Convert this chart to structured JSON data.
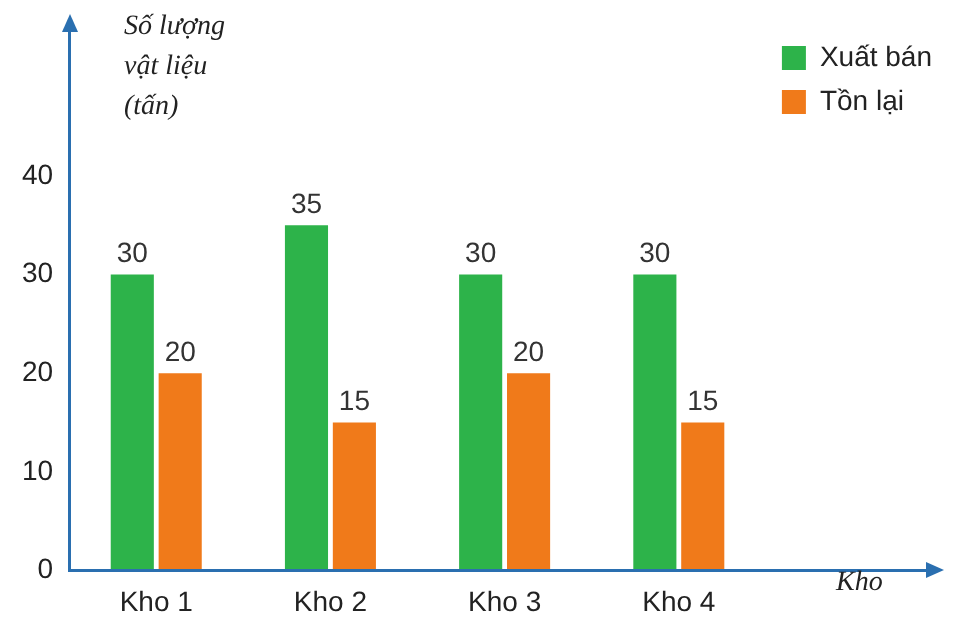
{
  "chart_data": {
    "type": "bar",
    "ylabel": "Số lượng vật liệu (tấn)",
    "xlabel": "Kho",
    "categories": [
      "Kho 1",
      "Kho 2",
      "Kho 3",
      "Kho 4"
    ],
    "series": [
      {
        "name": "Xuất bán",
        "color": "#2db34a",
        "values": [
          30,
          35,
          30,
          30
        ]
      },
      {
        "name": "Tồn lại",
        "color": "#f07a1a",
        "values": [
          20,
          15,
          20,
          15
        ]
      }
    ],
    "ylim": [
      0,
      55
    ],
    "yticks": [
      0,
      10,
      20,
      30,
      40
    ],
    "grid": false,
    "legend": "top right",
    "data_labels": true
  }
}
